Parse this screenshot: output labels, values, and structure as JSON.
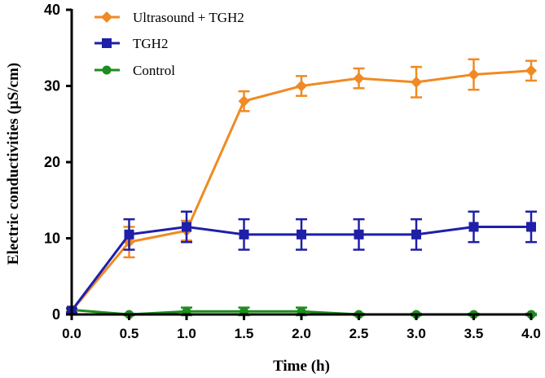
{
  "chart_data": {
    "type": "line",
    "title": "",
    "xlabel": "Time (h)",
    "ylabel": "Electric conductivities (μS/cm)",
    "xlim": [
      0,
      4
    ],
    "ylim": [
      0,
      40
    ],
    "x_ticks": [
      "0.0",
      "0.5",
      "1.0",
      "1.5",
      "2.0",
      "2.5",
      "3.0",
      "3.5",
      "4.0"
    ],
    "y_ticks": [
      "0",
      "10",
      "20",
      "30",
      "40"
    ],
    "legend_position": "top-left",
    "x": [
      0,
      0.5,
      1.0,
      1.5,
      2.0,
      2.5,
      3.0,
      3.5,
      4.0
    ],
    "series": [
      {
        "name": "Ultrasound +  TGH2",
        "color": "#F08A24",
        "marker": "diamond",
        "values": [
          0.5,
          9.5,
          11,
          28,
          30,
          31,
          30.5,
          31.5,
          32
        ],
        "errors": [
          0.3,
          2.0,
          1.3,
          1.3,
          1.3,
          1.3,
          2.0,
          2.0,
          1.3
        ]
      },
      {
        "name": "TGH2",
        "color": "#1F1FA8",
        "marker": "square",
        "values": [
          0.5,
          10.5,
          11.5,
          10.5,
          10.5,
          10.5,
          10.5,
          11.5,
          11.5
        ],
        "errors": [
          0.3,
          2.0,
          2.0,
          2.0,
          2.0,
          2.0,
          2.0,
          2.0,
          2.0
        ]
      },
      {
        "name": "Control",
        "color": "#1E8C1E",
        "marker": "circle",
        "values": [
          0.6,
          0,
          0.4,
          0.4,
          0.4,
          0,
          0,
          0,
          0
        ],
        "errors": [
          0.2,
          0.1,
          0.5,
          0.5,
          0.5,
          0.1,
          0.1,
          0.1,
          0.1
        ]
      }
    ]
  }
}
